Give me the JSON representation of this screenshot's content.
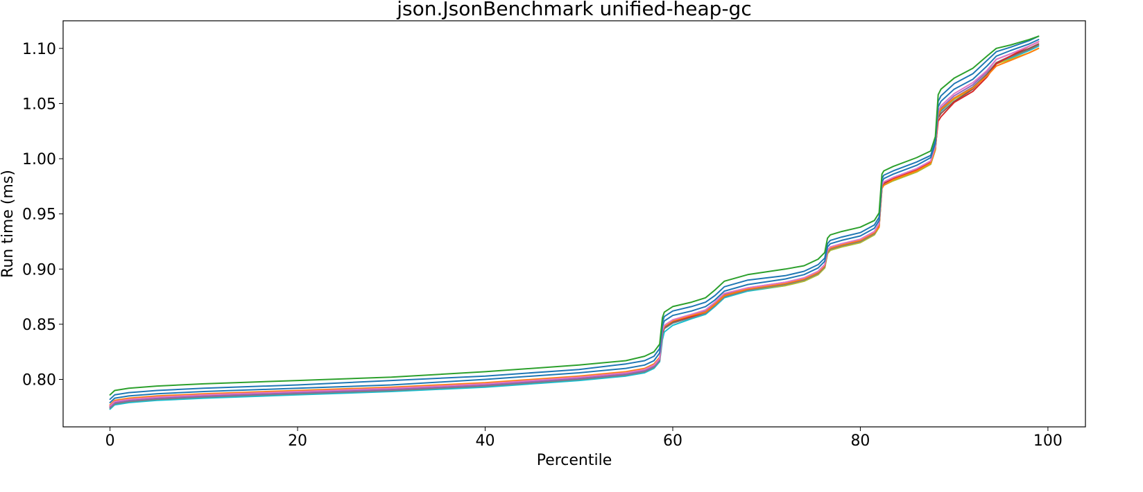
{
  "chart_data": {
    "type": "line",
    "title": "json.JsonBenchmark unified-heap-gc",
    "xlabel": "Percentile",
    "ylabel": "Run time (ms)",
    "xlim": [
      -5,
      104
    ],
    "ylim": [
      0.757,
      1.125
    ],
    "xticks": [
      0,
      20,
      40,
      60,
      80,
      100
    ],
    "xtick_labels": [
      "0",
      "20",
      "40",
      "60",
      "80",
      "100"
    ],
    "yticks": [
      0.8,
      0.85,
      0.9,
      0.95,
      1.0,
      1.05,
      1.1
    ],
    "ytick_labels": [
      "0.80",
      "0.85",
      "0.90",
      "0.95",
      "1.00",
      "1.05",
      "1.10"
    ],
    "grid": false,
    "legend": "none",
    "series_colors": [
      "#2ca02c",
      "#1f77b4",
      "#1f77b4",
      "#e377c2",
      "#ff7f0e",
      "#d62728",
      "#9467bd",
      "#8c564b",
      "#7f7f7f",
      "#bcbd22",
      "#17becf"
    ],
    "base_curve": {
      "x": [
        0,
        0.5,
        2,
        5,
        10,
        20,
        30,
        40,
        50,
        55,
        57,
        58,
        58.6,
        58.9,
        59.1,
        60,
        62,
        63.5,
        64.5,
        65.5,
        68,
        72,
        74,
        75.5,
        76.2,
        76.5,
        76.8,
        78,
        80,
        81.5,
        82,
        82.3,
        82.5,
        83.5,
        86,
        87.5,
        88,
        88.3,
        88.6,
        90,
        92,
        93.5,
        94.5,
        96,
        98,
        99
      ],
      "y": [
        0.775,
        0.779,
        0.781,
        0.783,
        0.785,
        0.788,
        0.791,
        0.795,
        0.801,
        0.805,
        0.808,
        0.812,
        0.818,
        0.842,
        0.847,
        0.852,
        0.857,
        0.861,
        0.868,
        0.876,
        0.882,
        0.887,
        0.891,
        0.897,
        0.903,
        0.916,
        0.919,
        0.922,
        0.926,
        0.933,
        0.94,
        0.975,
        0.978,
        0.982,
        0.99,
        0.997,
        1.01,
        1.04,
        1.045,
        1.056,
        1.066,
        1.078,
        1.088,
        1.093,
        1.1,
        1.104
      ]
    },
    "series": [
      {
        "offsets": [
          0.011,
          0.011,
          0.011,
          0.011,
          0.011,
          0.011,
          0.011,
          0.012,
          0.012,
          0.012,
          0.013,
          0.013,
          0.014,
          0.014,
          0.014,
          0.014,
          0.013,
          0.013,
          0.013,
          0.013,
          0.013,
          0.013,
          0.012,
          0.012,
          0.012,
          0.012,
          0.012,
          0.012,
          0.012,
          0.011,
          0.011,
          0.011,
          0.011,
          0.011,
          0.011,
          0.01,
          0.01,
          0.018,
          0.018,
          0.017,
          0.016,
          0.015,
          0.012,
          0.01,
          0.008,
          0.007
        ]
      },
      {
        "offsets": [
          0.007,
          0.007,
          0.007,
          0.007,
          0.007,
          0.007,
          0.008,
          0.008,
          0.008,
          0.009,
          0.009,
          0.009,
          0.01,
          0.01,
          0.01,
          0.01,
          0.009,
          0.009,
          0.008,
          0.008,
          0.008,
          0.007,
          0.007,
          0.007,
          0.007,
          0.007,
          0.007,
          0.007,
          0.007,
          0.007,
          0.007,
          0.007,
          0.007,
          0.007,
          0.007,
          0.006,
          0.006,
          0.012,
          0.012,
          0.012,
          0.011,
          0.011,
          0.009,
          0.008,
          0.007,
          0.007
        ]
      },
      {
        "offsets": [
          0.004,
          0.004,
          0.004,
          0.004,
          0.004,
          0.004,
          0.004,
          0.005,
          0.005,
          0.005,
          0.005,
          0.005,
          0.006,
          0.006,
          0.006,
          0.006,
          0.005,
          0.005,
          0.004,
          0.004,
          0.004,
          0.004,
          0.004,
          0.004,
          0.004,
          0.004,
          0.004,
          0.004,
          0.004,
          0.004,
          0.004,
          0.004,
          0.004,
          0.004,
          0.004,
          0.004,
          0.004,
          0.007,
          0.007,
          0.007,
          0.006,
          0.006,
          0.005,
          0.005,
          0.004,
          0.004
        ]
      },
      {
        "offsets": [
          0.001,
          0.001,
          0.001,
          0.001,
          0.001,
          0.001,
          0.001,
          0.001,
          0.001,
          0.001,
          0.001,
          0.001,
          0.001,
          0.002,
          0.002,
          0.002,
          0.002,
          0.002,
          0.002,
          0.002,
          0.001,
          0.001,
          0.001,
          0.001,
          0.001,
          0.001,
          0.001,
          0.001,
          0.001,
          0.001,
          0.001,
          0.001,
          0.001,
          0.001,
          0.001,
          0.001,
          0.001,
          0.003,
          0.003,
          0.003,
          0.003,
          0.002,
          0.002,
          0.002,
          0.002,
          0.002
        ]
      },
      {
        "offsets": [
          0.002,
          0.002,
          0.002,
          0.002,
          0.002,
          0.002,
          0.002,
          0.002,
          0.002,
          0.002,
          0.002,
          0.002,
          0.002,
          0.002,
          0.001,
          0.001,
          0.001,
          0.0,
          0.0,
          0.0,
          0.0,
          0.0,
          0.0,
          0.0,
          0.0,
          0.0,
          0.0,
          0.0,
          0.0,
          0.0,
          -0.002,
          -0.002,
          -0.002,
          -0.001,
          -0.001,
          -0.001,
          -0.001,
          0.0,
          0.0,
          -0.001,
          -0.002,
          -0.003,
          -0.004,
          -0.004,
          -0.004,
          -0.004
        ]
      },
      {
        "offsets": [
          0.001,
          0.001,
          0.001,
          0.001,
          0.001,
          0.001,
          0.001,
          0.001,
          0.001,
          0.001,
          0.001,
          0.001,
          0.001,
          0.001,
          0.001,
          0.001,
          0.0,
          0.0,
          0.0,
          0.0,
          0.0,
          0.0,
          0.0,
          0.0,
          0.0,
          0.0,
          0.0,
          0.0,
          0.0,
          0.0,
          0.0,
          0.0,
          0.0,
          0.0,
          0.0,
          0.0,
          0.0,
          -0.006,
          -0.007,
          -0.005,
          -0.005,
          -0.004,
          -0.002,
          0.0,
          0.002,
          0.002
        ]
      },
      {
        "offsets": [
          0.0,
          0.0,
          0.0,
          0.0,
          0.0,
          0.0,
          0.0,
          0.0,
          0.0,
          0.0,
          0.0,
          0.0,
          0.0,
          0.001,
          0.001,
          0.001,
          0.001,
          0.001,
          0.001,
          0.001,
          0.001,
          0.001,
          0.001,
          0.001,
          0.001,
          0.001,
          0.001,
          0.001,
          0.001,
          0.001,
          0.001,
          0.001,
          0.001,
          0.001,
          0.001,
          0.001,
          0.001,
          0.001,
          0.001,
          0.001,
          0.001,
          0.001,
          0.002,
          0.002,
          0.002,
          0.002
        ]
      },
      {
        "offsets": [
          0.0,
          0.0,
          0.0,
          0.0,
          0.0,
          0.0,
          0.0,
          0.0,
          0.0,
          0.0,
          0.0,
          0.0,
          0.0,
          0.0,
          0.0,
          0.0,
          0.0,
          0.0,
          0.0,
          0.0,
          0.0,
          0.0,
          0.0,
          0.0,
          0.0,
          0.0,
          0.0,
          0.0,
          0.0,
          0.0,
          0.0,
          0.0,
          0.0,
          0.0,
          0.0,
          0.0,
          0.0,
          -0.003,
          -0.004,
          -0.004,
          -0.003,
          -0.002,
          -0.001,
          0.0,
          0.0,
          0.0
        ]
      },
      {
        "offsets": [
          -0.001,
          -0.001,
          -0.001,
          -0.001,
          -0.001,
          -0.001,
          -0.001,
          -0.001,
          -0.001,
          -0.001,
          -0.001,
          -0.001,
          -0.001,
          -0.001,
          -0.001,
          -0.001,
          -0.001,
          -0.001,
          -0.001,
          -0.001,
          -0.001,
          -0.001,
          -0.001,
          -0.001,
          -0.001,
          -0.001,
          -0.001,
          -0.001,
          -0.001,
          -0.001,
          -0.001,
          -0.001,
          -0.001,
          -0.001,
          -0.001,
          -0.001,
          -0.001,
          -0.001,
          -0.001,
          -0.001,
          -0.001,
          -0.001,
          -0.001,
          -0.001,
          -0.001,
          -0.001
        ]
      },
      {
        "offsets": [
          0.0,
          0.0,
          0.0,
          0.0,
          0.0,
          0.0,
          0.0,
          0.0,
          0.0,
          0.0,
          0.0,
          0.0,
          0.0,
          0.0,
          0.0,
          0.0,
          0.0,
          0.0,
          -0.001,
          -0.001,
          -0.001,
          -0.002,
          -0.002,
          -0.002,
          -0.002,
          -0.002,
          -0.002,
          -0.002,
          -0.002,
          -0.002,
          -0.002,
          -0.002,
          -0.002,
          -0.002,
          -0.002,
          -0.002,
          -0.002,
          -0.001,
          -0.001,
          -0.002,
          -0.002,
          -0.002,
          -0.002,
          -0.003,
          -0.004,
          -0.004
        ]
      },
      {
        "offsets": [
          -0.002,
          -0.002,
          -0.002,
          -0.002,
          -0.002,
          -0.002,
          -0.002,
          -0.002,
          -0.002,
          -0.002,
          -0.002,
          -0.002,
          -0.002,
          -0.006,
          -0.004,
          -0.003,
          -0.002,
          -0.002,
          -0.002,
          -0.002,
          -0.002,
          -0.002,
          -0.002,
          -0.002,
          -0.002,
          -0.002,
          -0.002,
          -0.002,
          -0.002,
          -0.002,
          -0.002,
          -0.002,
          -0.002,
          -0.002,
          -0.002,
          -0.002,
          -0.002,
          -0.002,
          -0.002,
          -0.002,
          -0.002,
          -0.002,
          -0.002,
          -0.002,
          -0.002,
          -0.002
        ]
      }
    ]
  }
}
